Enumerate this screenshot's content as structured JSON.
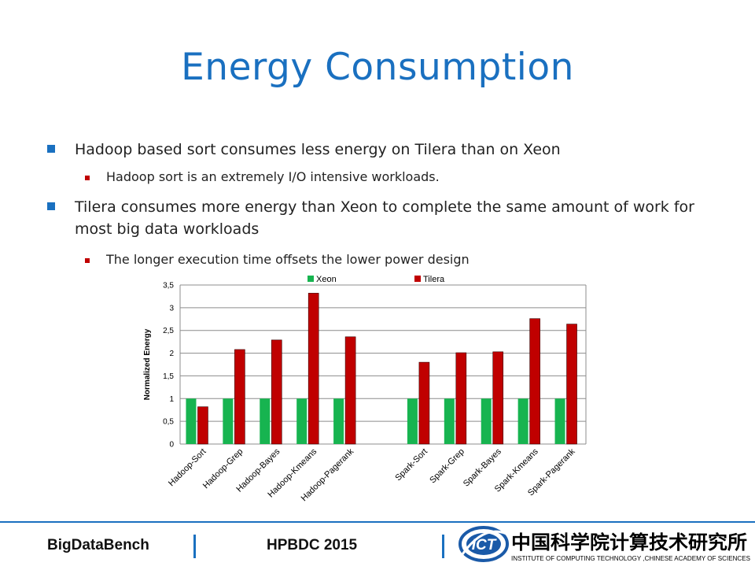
{
  "slide": {
    "title": "Energy Consumption",
    "bullets": [
      {
        "level": 1,
        "text": "Hadoop based sort consumes less energy on Tilera than on Xeon"
      },
      {
        "level": 2,
        "text": "Hadoop sort  is an extremely I/O intensive workloads."
      },
      {
        "level": 1,
        "text": "Tilera consumes more energy than Xeon to complete the same amount of work for most big data workloads"
      },
      {
        "level": 2,
        "text": "The longer execution time offsets the lower power design"
      }
    ]
  },
  "chart_data": {
    "type": "bar",
    "title": "",
    "xlabel": "",
    "ylabel": "Normalized Energy",
    "ylim": [
      0,
      3.5
    ],
    "yticks": [
      "0",
      "0,5",
      "1",
      "1,5",
      "2",
      "2,5",
      "3",
      "3,5"
    ],
    "grid": true,
    "legend": "top",
    "categories": [
      "Hadoop-Sort",
      "Hadoop-Grep",
      "Hadoop-Bayes",
      "Hadoop-Kmeans",
      "Hadoop-Pagerank",
      "",
      "Spark-Sort",
      "Spark-Grep",
      "Spark-Bayes",
      "Spark-Kmeans",
      "Spark-Pagerank"
    ],
    "series": [
      {
        "name": "Xeon",
        "color": "#17b450",
        "values": [
          1,
          1,
          1,
          1,
          1,
          null,
          1,
          1,
          1,
          1,
          1
        ]
      },
      {
        "name": "Tilera",
        "color": "#c00000",
        "values": [
          0.82,
          2.08,
          2.29,
          3.32,
          2.36,
          null,
          1.8,
          2.01,
          2.03,
          2.76,
          2.64
        ]
      }
    ]
  },
  "footer": {
    "left": "BigDataBench",
    "center": "HPBDC 2015",
    "logo_text": "ICT",
    "logo_chinese": "中国科学院计算技术研究所",
    "logo_english": "INSTITUTE OF COMPUTING TECHNOLOGY ,CHINESE ACADEMY OF SCIENCES"
  }
}
